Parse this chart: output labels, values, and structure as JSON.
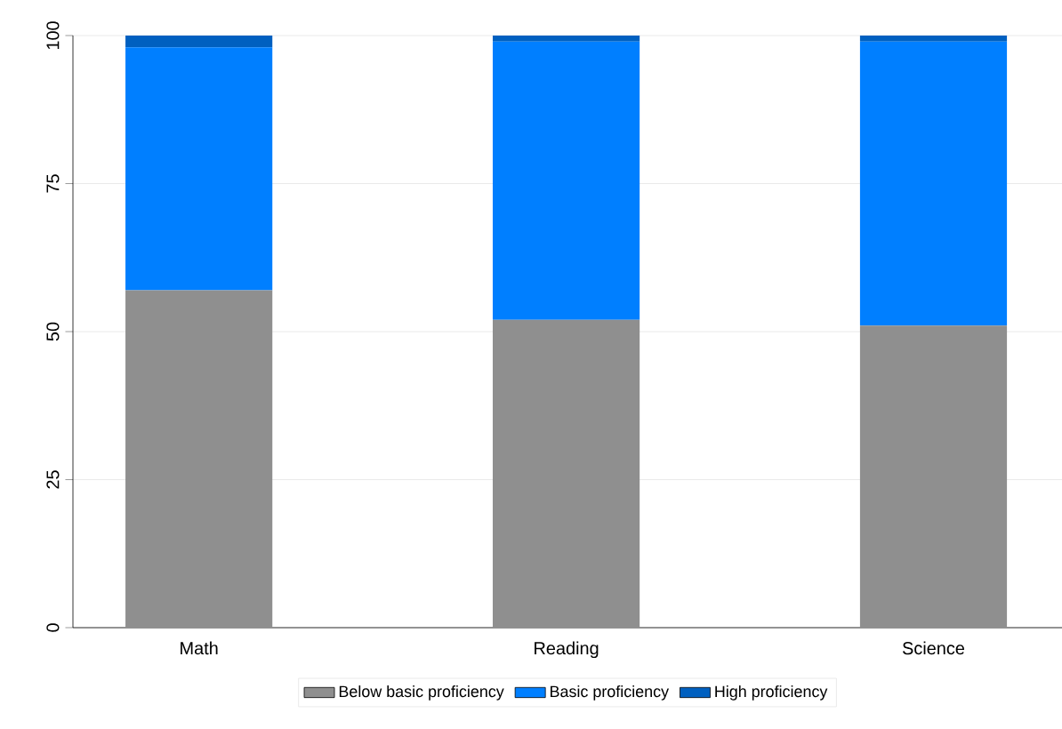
{
  "chart_data": {
    "type": "bar",
    "stacked": true,
    "categories": [
      "Math",
      "Reading",
      "Science"
    ],
    "series": [
      {
        "name": "Below basic proficiency",
        "color": "#8f8f8f",
        "values": [
          57,
          52,
          51
        ]
      },
      {
        "name": "Basic proficiency",
        "color": "#007fff",
        "values": [
          41,
          47,
          48
        ]
      },
      {
        "name": "High proficiency",
        "color": "#0060c0",
        "values": [
          2,
          1,
          1
        ]
      }
    ],
    "ylim": [
      0,
      100
    ],
    "yticks": [
      0,
      25,
      50,
      75,
      100
    ],
    "grid": "y",
    "legend": "bottom"
  }
}
